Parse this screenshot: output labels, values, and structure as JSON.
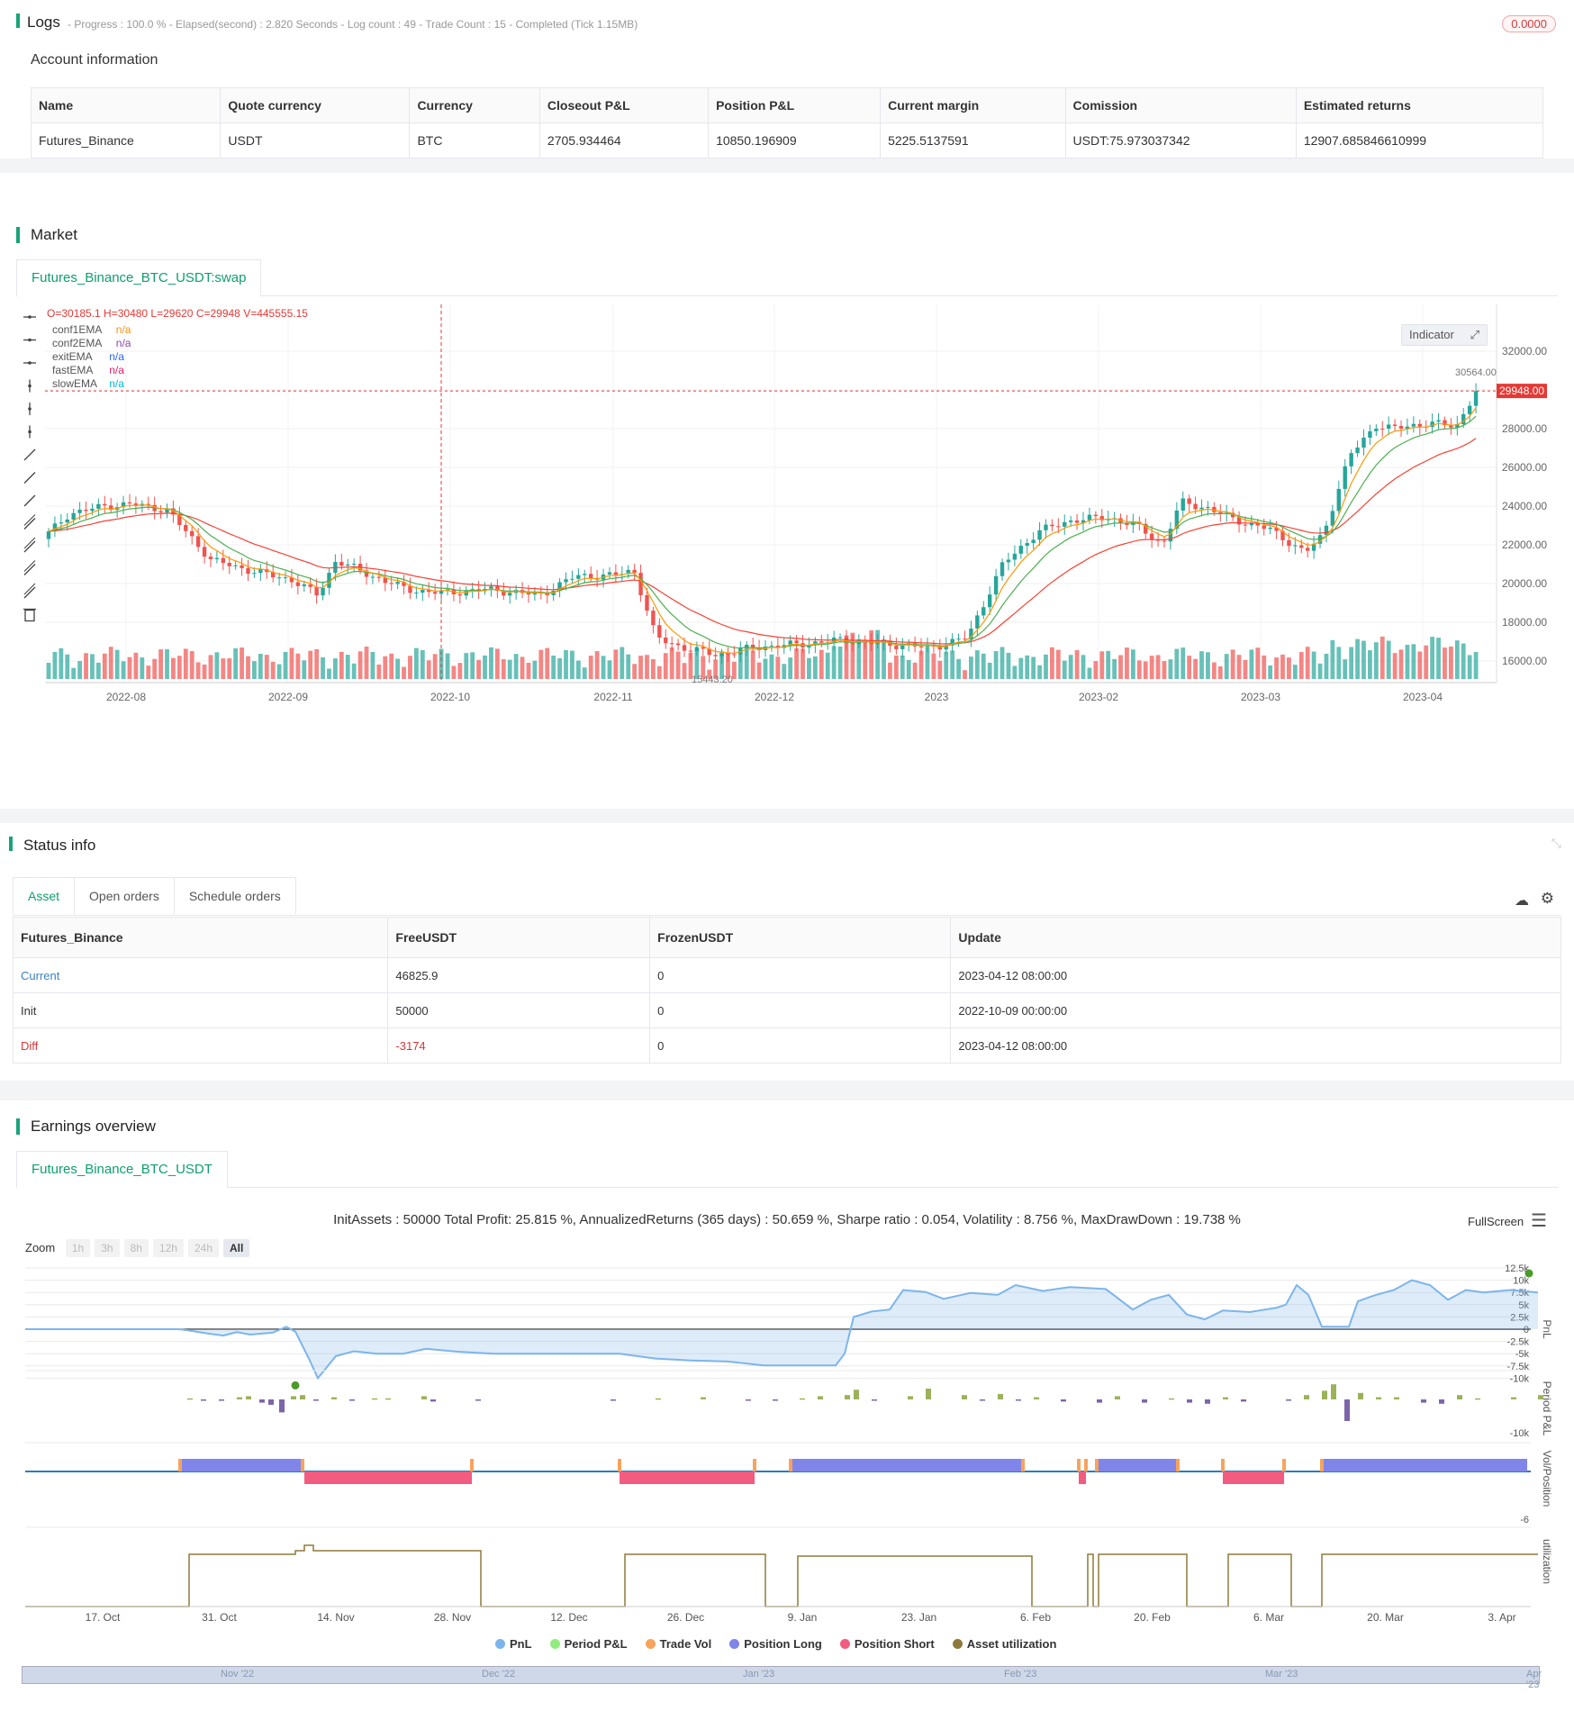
{
  "logs": {
    "title": "Logs",
    "status": "- Progress : 100.0 % - Elapsed(second) : 2.820  Seconds - Log count : 49 - Trade Count : 15 - Completed (Tick 1.15MB)",
    "badge": "0.0000"
  },
  "account": {
    "title": "Account information",
    "headers": [
      "Name",
      "Quote currency",
      "Currency",
      "Closeout P&L",
      "Position P&L",
      "Current margin",
      "Comission",
      "Estimated returns"
    ],
    "row": [
      "Futures_Binance",
      "USDT",
      "BTC",
      "2705.934464",
      "10850.196909",
      "5225.5137591",
      "USDT:75.973037342",
      "12907.685846610999"
    ]
  },
  "market": {
    "title": "Market",
    "tab": "Futures_Binance_BTC_USDT:swap",
    "ohlc": "O=30185.1 H=30480 L=29620 C=29948 V=445555.15",
    "indicator_btn": "Indicator",
    "legend": [
      {
        "name": "conf1EMA",
        "value": "n/a",
        "color": "#f7931a"
      },
      {
        "name": "conf2EMA",
        "value": "n/a",
        "color": "#8e44ad"
      },
      {
        "name": "exitEMA",
        "value": "n/a",
        "color": "#2962ff"
      },
      {
        "name": "fastEMA",
        "value": "n/a",
        "color": "#e91e63"
      },
      {
        "name": "slowEMA",
        "value": "n/a",
        "color": "#00bcd4"
      }
    ],
    "price_axis": [
      "32000.00",
      "30000.00",
      "28000.00",
      "26000.00",
      "24000.00",
      "22000.00",
      "20000.00",
      "18000.00",
      "16000.00"
    ],
    "last_price": "29948.00",
    "high_label": "30564.00",
    "low_label": "15443.20",
    "time_axis": [
      "2022-08",
      "2022-09",
      "2022-10",
      "2022-11",
      "2022-12",
      "2023",
      "2023-02",
      "2023-03",
      "2023-04"
    ],
    "colors": {
      "up": "#26a69a",
      "down": "#ef5350",
      "ema_slow": "#f44336",
      "ema_mid": "#4caf50",
      "ema_fast": "#ff9800"
    }
  },
  "status": {
    "title": "Status info",
    "tabs": [
      "Asset",
      "Open orders",
      "Schedule orders"
    ],
    "headers": [
      "Futures_Binance",
      "FreeUSDT",
      "FrozenUSDT",
      "Update"
    ],
    "rows": [
      {
        "label": "Current",
        "free": "46825.9",
        "frozen": "0",
        "update": "2023-04-12 08:00:00"
      },
      {
        "label": "Init",
        "free": "50000",
        "frozen": "0",
        "update": "2022-10-09 00:00:00"
      },
      {
        "label": "Diff",
        "free": "-3174",
        "frozen": "0",
        "update": "2023-04-12 08:00:00"
      }
    ]
  },
  "earnings": {
    "title": "Earnings overview",
    "tab": "Futures_Binance_BTC_USDT",
    "summary": "InitAssets : 50000 Total Profit: 25.815 %, AnnualizedReturns (365 days) : 50.659 %, Sharpe ratio : 0.054, Volatility : 8.756 %, MaxDrawDown : 19.738 %",
    "fullscreen": "FullScreen",
    "zoom_label": "Zoom",
    "zoom_buttons": [
      "1h",
      "3h",
      "8h",
      "12h",
      "24h",
      "All"
    ],
    "pnl_axis": [
      "12.5k",
      "10k",
      "7.5k",
      "5k",
      "2.5k",
      "0",
      "-2.5k",
      "-5k",
      "-7.5k",
      "-10k"
    ],
    "period_axis": "-10k",
    "pos_axis": "-6",
    "axis_titles": [
      "PnL",
      "Period P&L",
      "Vol/Position",
      "utilization"
    ],
    "x_axis": [
      "17. Oct",
      "31. Oct",
      "14. Nov",
      "28. Nov",
      "12. Dec",
      "26. Dec",
      "9. Jan",
      "23. Jan",
      "6. Feb",
      "20. Feb",
      "6. Mar",
      "20. Mar",
      "3. Apr"
    ],
    "navigator": [
      "Nov '22",
      "Dec '22",
      "Jan '23",
      "Feb '23",
      "Mar '23",
      "Apr '23"
    ],
    "legend": [
      {
        "name": "PnL",
        "color": "#7cb5ec"
      },
      {
        "name": "Period P&L",
        "color": "#90ed7d"
      },
      {
        "name": "Trade Vol",
        "color": "#f7a35c"
      },
      {
        "name": "Position Long",
        "color": "#8085e9"
      },
      {
        "name": "Position Short",
        "color": "#f15c80"
      },
      {
        "name": "Asset utilization",
        "color": "#8d7a3a"
      }
    ]
  }
}
